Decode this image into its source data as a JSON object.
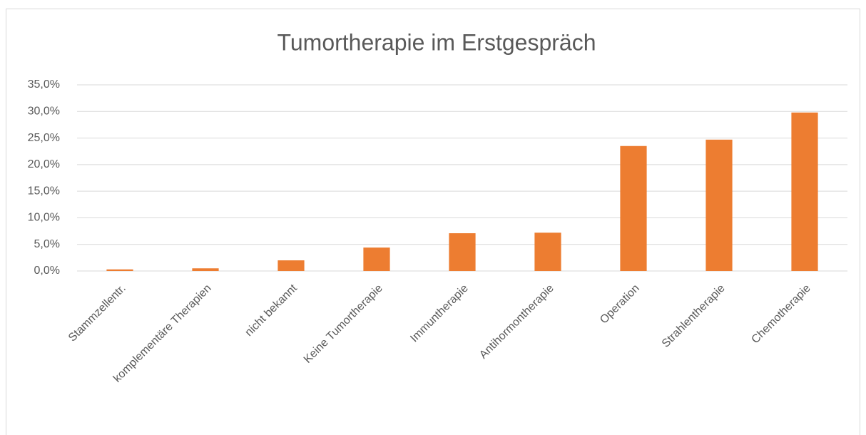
{
  "chart_data": {
    "type": "bar",
    "title": "Tumortherapie im Erstgespräch",
    "categories": [
      "Stammzellentr.",
      "komplementäre Therapien",
      "nicht bekannt",
      "Keine Tumortherapie",
      "Immuntherapie",
      "Antihormontherapie",
      "Operation",
      "Strahlentherapie",
      "Chemotherapie"
    ],
    "values": [
      0.3,
      0.5,
      2.0,
      4.4,
      7.1,
      7.2,
      23.5,
      24.7,
      29.8
    ],
    "color": "#ed7d31",
    "ylim": [
      0,
      35
    ],
    "yticks": [
      {
        "value": 0,
        "label": "0,0%"
      },
      {
        "value": 5,
        "label": "5,0%"
      },
      {
        "value": 10,
        "label": "10,0%"
      },
      {
        "value": 15,
        "label": "15,0%"
      },
      {
        "value": 20,
        "label": "20,0%"
      },
      {
        "value": 25,
        "label": "25,0%"
      },
      {
        "value": 30,
        "label": "30,0%"
      },
      {
        "value": 35,
        "label": "35,0%"
      }
    ],
    "grid": true
  }
}
